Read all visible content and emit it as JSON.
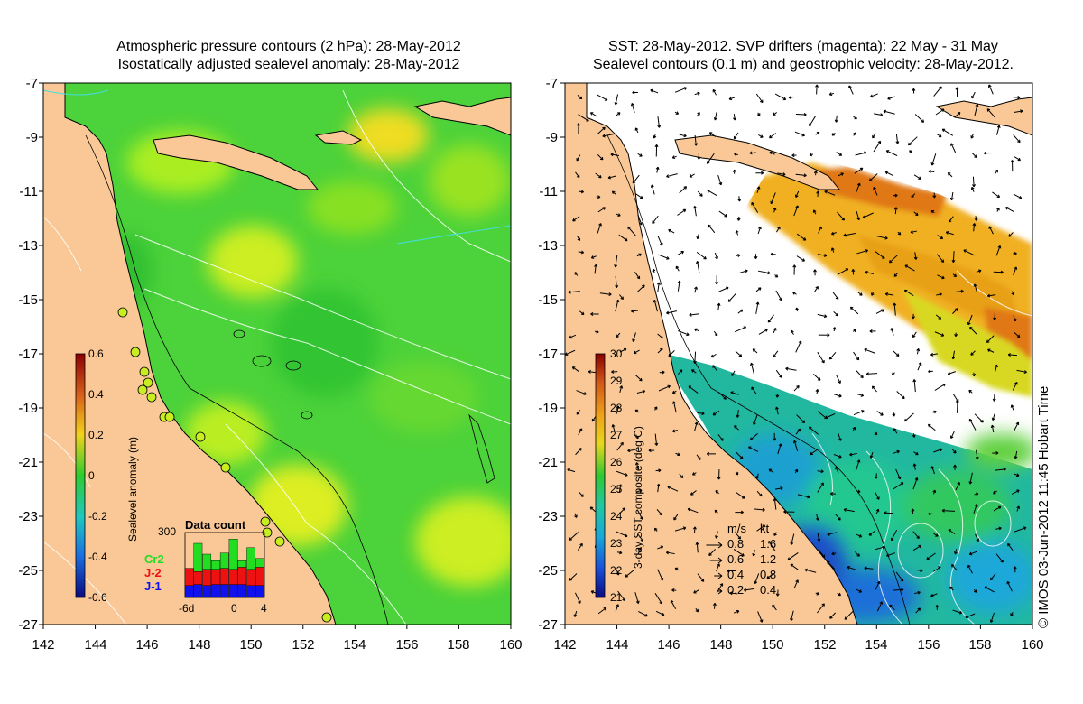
{
  "left_panel": {
    "title_line1": "Atmospheric pressure contours (2 hPa): 28-May-2012",
    "title_line2": "Isostatically adjusted sealevel anomaly: 28-May-2012",
    "colorbar": {
      "label": "Sealevel anomaly (m)",
      "ticks": [
        "0.6",
        "0.4",
        "0.2",
        "0",
        "-0.2",
        "-0.4",
        "-0.6"
      ],
      "min": -0.6,
      "max": 0.6
    },
    "data_count": {
      "title": "Data count",
      "ymax_label": "300",
      "ymax": 300,
      "x_ticks": [
        "-6d",
        "0",
        "4"
      ],
      "legend": [
        {
          "name": "Cr2",
          "color": "#22dd22"
        },
        {
          "name": "J-2",
          "color": "#ee1111"
        },
        {
          "name": "J-1",
          "color": "#1111ee"
        }
      ],
      "bars": [
        {
          "j1": 55,
          "j2": 80,
          "cr2": 0
        },
        {
          "j1": 60,
          "j2": 60,
          "cr2": 130
        },
        {
          "j1": 55,
          "j2": 75,
          "cr2": 70
        },
        {
          "j1": 60,
          "j2": 70,
          "cr2": 40
        },
        {
          "j1": 60,
          "j2": 75,
          "cr2": 70
        },
        {
          "j1": 60,
          "j2": 70,
          "cr2": 140
        },
        {
          "j1": 60,
          "j2": 80,
          "cr2": 30
        },
        {
          "j1": 55,
          "j2": 75,
          "cr2": 100
        },
        {
          "j1": 55,
          "j2": 85,
          "cr2": 40
        }
      ]
    }
  },
  "right_panel": {
    "title_line1": "SST: 28-May-2012. SVP drifters (magenta): 22 May - 31 May",
    "title_line2": "Sealevel contours (0.1 m) and geostrophic velocity: 28-May-2012.",
    "colorbar": {
      "label": "3-day SST composite (deg C)",
      "ticks": [
        "30",
        "29",
        "28",
        "27",
        "26",
        "25",
        "24",
        "23",
        "22",
        "21"
      ],
      "min": 21,
      "max": 30
    },
    "velocity_legend": {
      "header_ms": "m/s",
      "header_kt": "kt",
      "rows": [
        {
          "ms": "0.8",
          "kt": "1.6",
          "speed": 0.8
        },
        {
          "ms": "0.6",
          "kt": "1.2",
          "speed": 0.6
        },
        {
          "ms": "0.4",
          "kt": "0.8",
          "speed": 0.4
        },
        {
          "ms": "0.2",
          "kt": "0.4",
          "speed": 0.2
        }
      ]
    }
  },
  "axes": {
    "lat_ticks": [
      "-7",
      "-9",
      "-11",
      "-13",
      "-15",
      "-17",
      "-19",
      "-21",
      "-23",
      "-25",
      "-27"
    ],
    "lon_ticks": [
      "142",
      "144",
      "146",
      "148",
      "150",
      "152",
      "154",
      "156",
      "158",
      "160"
    ],
    "lat_range": [
      -27,
      -7
    ],
    "lon_range": [
      142,
      160
    ]
  },
  "copyright": "© IMOS 03-Jun-2012 11:45 Hobart Time",
  "colors": {
    "land": "#f9c896",
    "coast": "#000000",
    "sla_green": "#2ecc2e",
    "sst_white": "#ffffff"
  }
}
